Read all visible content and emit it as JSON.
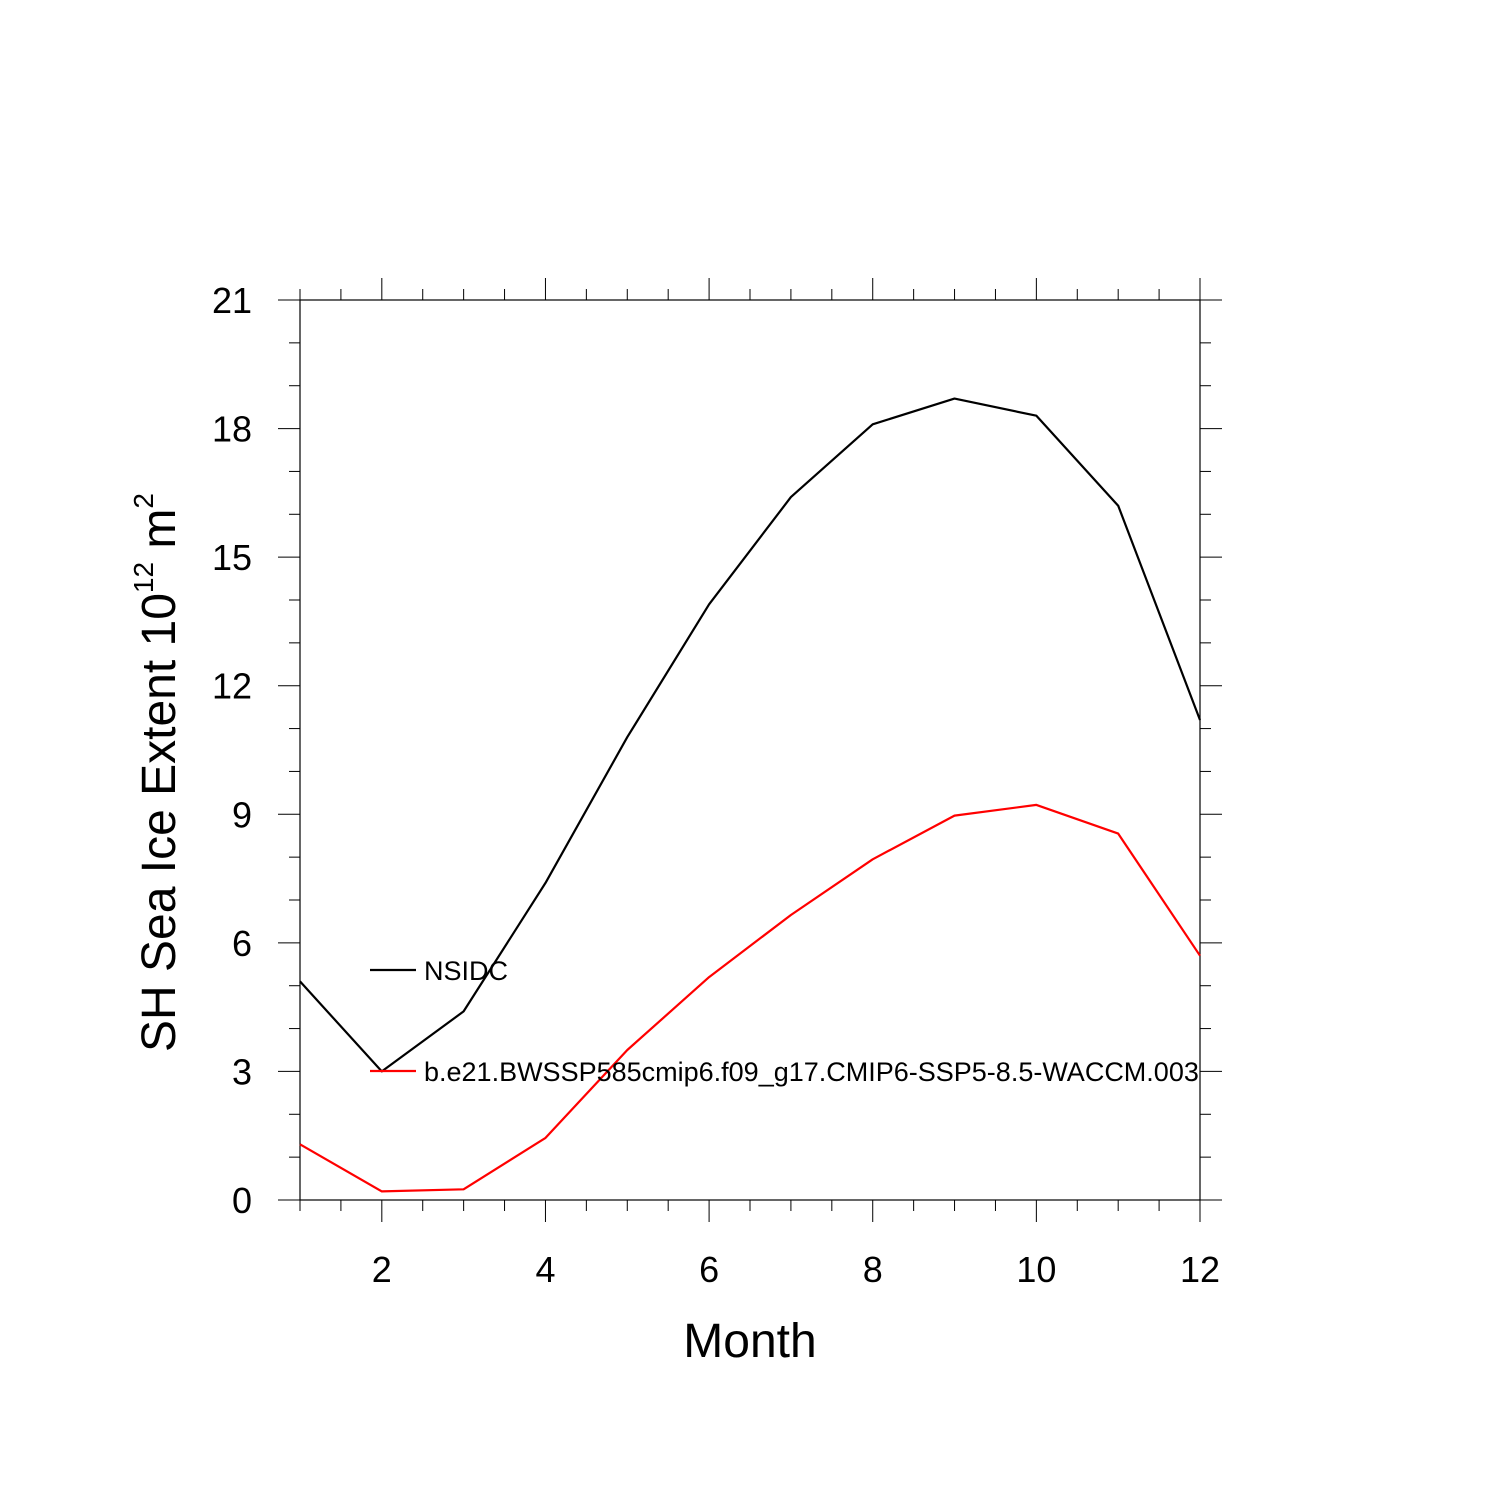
{
  "chart_data": {
    "type": "line",
    "title": "",
    "xlabel": "Month",
    "ylabel": {
      "main": "SH Sea Ice Extent 10",
      "superscript1": "12",
      "unit": " m",
      "superscript2": "2"
    },
    "xlim": [
      1,
      12
    ],
    "ylim": [
      0,
      21
    ],
    "xticks": [
      2,
      4,
      6,
      8,
      10,
      12
    ],
    "yticks": [
      0,
      3,
      6,
      9,
      12,
      15,
      18,
      21
    ],
    "grid": false,
    "legend_position": "inside-left",
    "x": [
      1,
      2,
      3,
      4,
      5,
      6,
      7,
      8,
      9,
      10,
      11,
      12
    ],
    "series": [
      {
        "name": "NSIDC",
        "color": "#000000",
        "values": [
          5.1,
          3.0,
          4.4,
          7.4,
          10.8,
          13.9,
          16.4,
          18.1,
          18.7,
          18.3,
          16.2,
          11.2
        ]
      },
      {
        "name": "b.e21.BWSSP585cmip6.f09_g17.CMIP6-SSP5-8.5-WACCM.003",
        "color": "#ff0000",
        "values": [
          1.3,
          0.2,
          0.25,
          1.45,
          3.5,
          5.2,
          6.65,
          7.95,
          8.97,
          9.22,
          8.55,
          5.7
        ]
      }
    ]
  }
}
